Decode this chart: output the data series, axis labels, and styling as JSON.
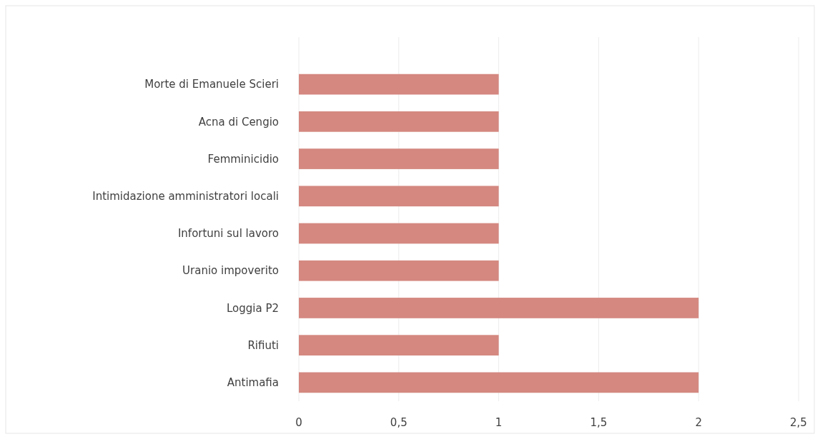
{
  "chart_data": {
    "type": "bar",
    "orientation": "horizontal",
    "categories": [
      "Morte di Emanuele Scieri",
      "Acna di Cengio",
      "Femminicidio",
      "Intimidazione amministratori locali",
      "Infortuni sul lavoro",
      "Uranio impoverito",
      "Loggia P2",
      "Rifiuti",
      "Antimafia"
    ],
    "values": [
      1,
      1,
      1,
      1,
      1,
      1,
      2,
      1,
      2
    ],
    "color": "#d48880",
    "xlim": [
      0,
      2.5
    ],
    "xticks": [
      0,
      {
        "value": 0.5,
        "label": "0,5"
      },
      1,
      {
        "value": 1.5,
        "label": "1,5"
      },
      2,
      {
        "value": 2.5,
        "label": "2,5"
      }
    ],
    "grid": "x"
  }
}
